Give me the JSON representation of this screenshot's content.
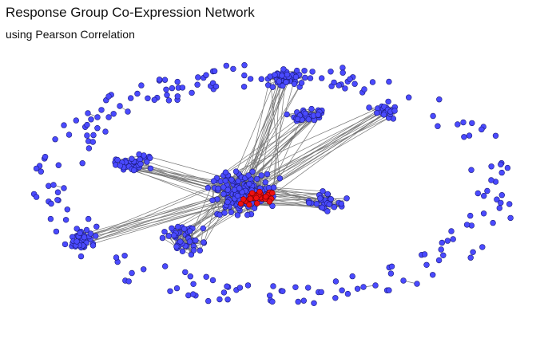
{
  "title": "Response Group Co-Expression Network",
  "subtitle": "using Pearson Correlation",
  "colors": {
    "node": "#4a4aff",
    "node_stroke": "#1a1a7a",
    "highlight": "#ee1111",
    "highlight_stroke": "#7a0000",
    "edge": "#777777"
  }
}
